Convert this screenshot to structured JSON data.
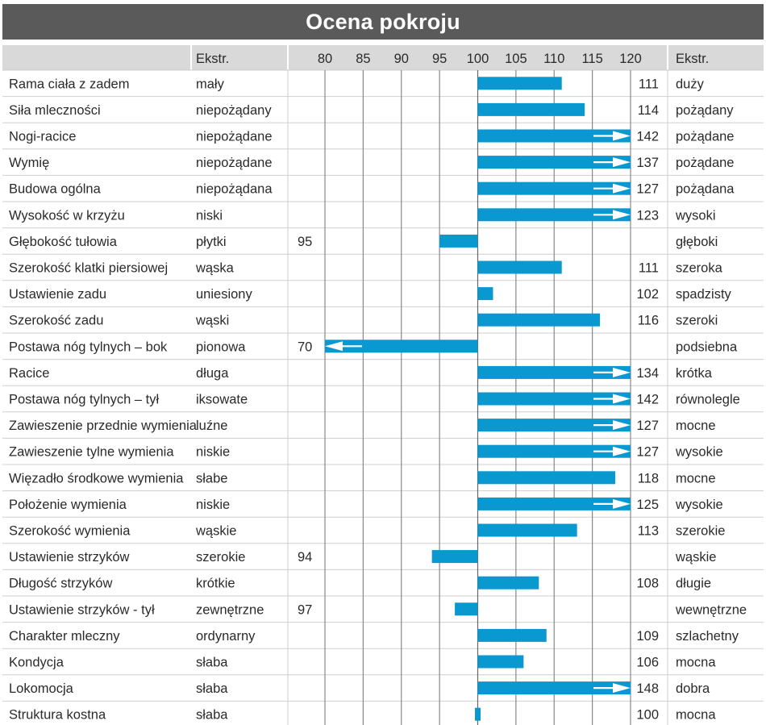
{
  "colors": {
    "bar": "#0a98d0",
    "header_fill": "#d9d9d9",
    "row_line": "#cfcfcf",
    "grid": "#888888",
    "title_bg": "#5a5a5a"
  },
  "chart_data": {
    "type": "bar",
    "title": "Ocena pokroju",
    "header": {
      "left_extreme": "Ekstr.",
      "right_extreme": "Ekstr."
    },
    "base_value": 100,
    "xlim": [
      80,
      120
    ],
    "ticks": [
      80,
      85,
      90,
      95,
      100,
      105,
      110,
      115,
      120
    ],
    "truncated_note": "bars beyond the axis are clipped and marked with an arrow",
    "rows": [
      {
        "trait": "Rama ciała z zadem",
        "left": "mały",
        "value": 111,
        "right": "duży"
      },
      {
        "trait": "Siła mleczności",
        "left": "niepożądany",
        "value": 114,
        "right": "pożądany"
      },
      {
        "trait": "Nogi-racice",
        "left": "niepożądane",
        "value": 142,
        "right": "pożądane"
      },
      {
        "trait": "Wymię",
        "left": "niepożądane",
        "value": 137,
        "right": "pożądane"
      },
      {
        "trait": "Budowa ogólna",
        "left": "niepożądana",
        "value": 127,
        "right": "pożądana"
      },
      {
        "trait": "Wysokość w krzyżu",
        "left": "niski",
        "value": 123,
        "right": "wysoki"
      },
      {
        "trait": "Głębokość tułowia",
        "left": "płytki",
        "value": 95,
        "right": "głęboki"
      },
      {
        "trait": "Szerokość klatki piersiowej",
        "left": "wąska",
        "value": 111,
        "right": "szeroka"
      },
      {
        "trait": "Ustawienie zadu",
        "left": "uniesiony",
        "value": 102,
        "right": "spadzisty"
      },
      {
        "trait": "Szerokość zadu",
        "left": "wąski",
        "value": 116,
        "right": "szeroki"
      },
      {
        "trait": "Postawa nóg tylnych –  bok",
        "left": "pionowa",
        "value": 70,
        "right": "podsiebna"
      },
      {
        "trait": "Racice",
        "left": "długa",
        "value": 134,
        "right": "krótka"
      },
      {
        "trait": "Postawa nóg tylnych –  tył",
        "left": "iksowate",
        "value": 142,
        "right": "równolegle"
      },
      {
        "trait": "Zawieszenie przednie wymienia",
        "left": "luźne",
        "value": 127,
        "right": "mocne"
      },
      {
        "trait": "Zawieszenie tylne wymienia",
        "left": "niskie",
        "value": 127,
        "right": "wysokie"
      },
      {
        "trait": "Więzadło środkowe wymienia",
        "left": "słabe",
        "value": 118,
        "right": "mocne"
      },
      {
        "trait": "Położenie wymienia",
        "left": "niskie",
        "value": 125,
        "right": "wysokie"
      },
      {
        "trait": "Szerokość wymienia",
        "left": "wąskie",
        "value": 113,
        "right": "szerokie"
      },
      {
        "trait": "Ustawienie strzyków",
        "left": "szerokie",
        "value": 94,
        "right": "wąskie"
      },
      {
        "trait": "Długość strzyków",
        "left": "krótkie",
        "value": 108,
        "right": "długie"
      },
      {
        "trait": "Ustawienie strzyków - tył",
        "left": "zewnętrzne",
        "value": 97,
        "right": "wewnętrzne"
      },
      {
        "trait": "Charakter mleczny",
        "left": "ordynarny",
        "value": 109,
        "right": "szlachetny"
      },
      {
        "trait": "Kondycja",
        "left": "słaba",
        "value": 106,
        "right": "mocna"
      },
      {
        "trait": "Lokomocja",
        "left": "słaba",
        "value": 148,
        "right": "dobra"
      },
      {
        "trait": "Struktura kostna",
        "left": "słaba",
        "value": 100,
        "right": "mocna"
      }
    ]
  }
}
